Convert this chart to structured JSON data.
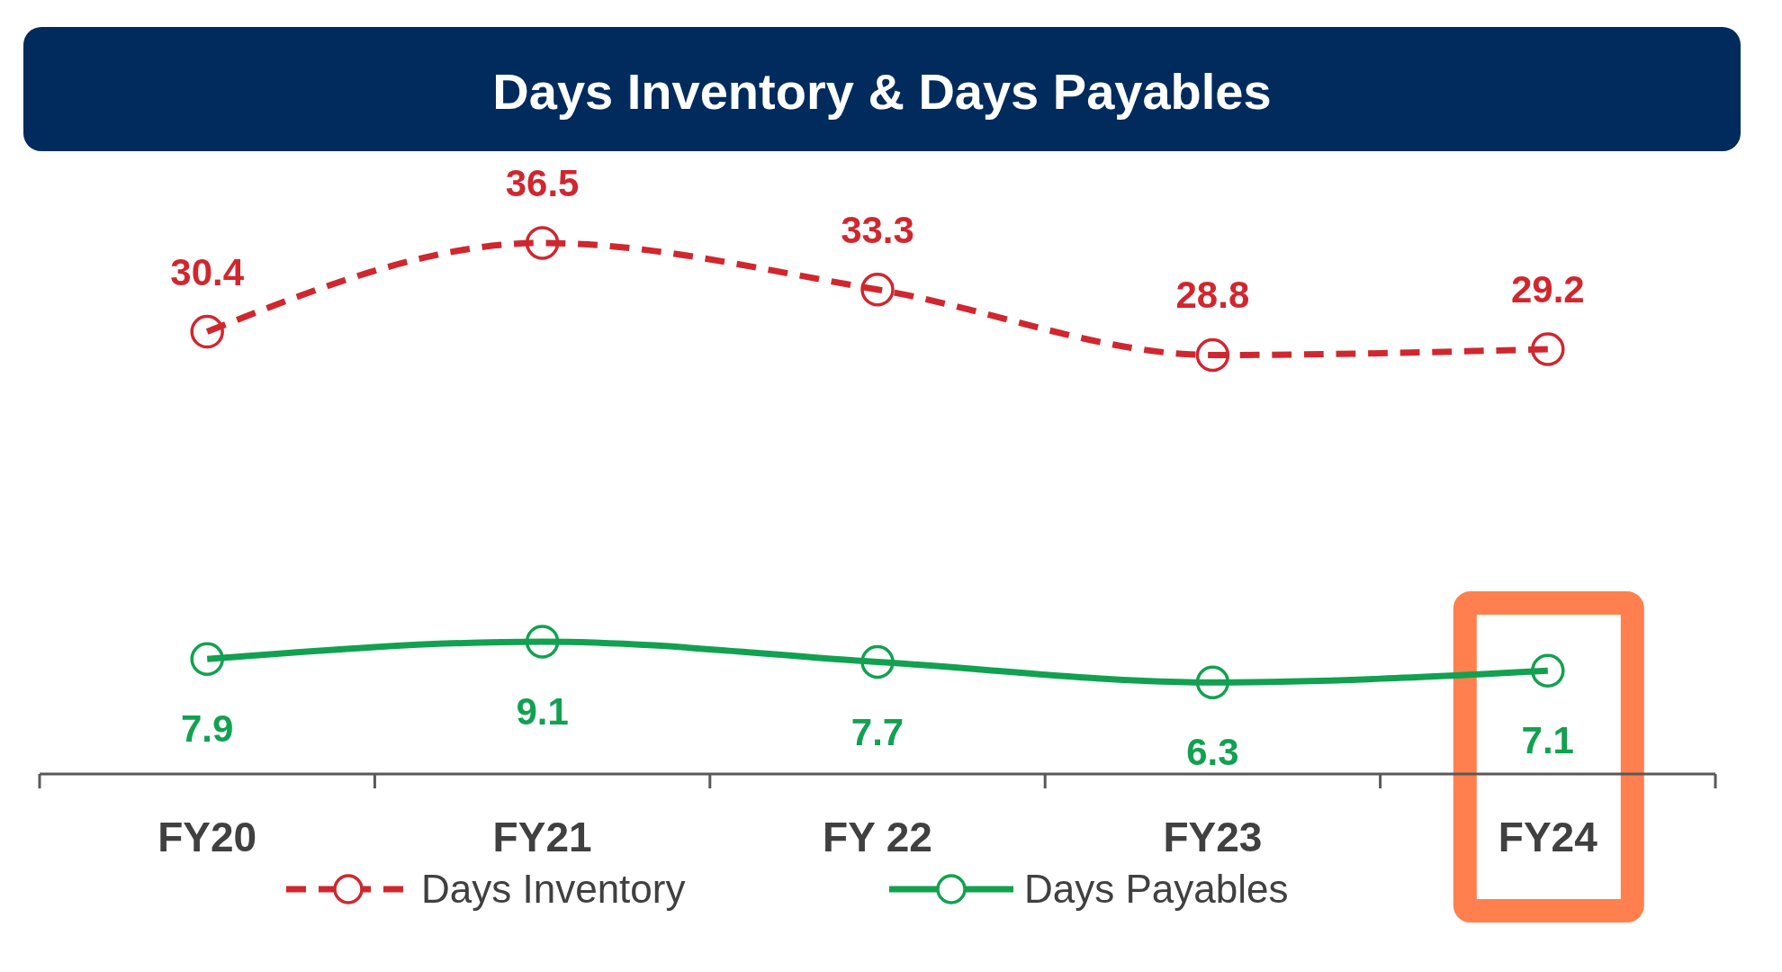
{
  "chart_data": {
    "type": "line",
    "title": "Days Inventory & Days Payables",
    "categories": [
      "FY20",
      "FY21",
      "FY 22",
      "FY23",
      "FY24"
    ],
    "series": [
      {
        "name": "Days Inventory",
        "color": "#d0272f",
        "values": [
          30.4,
          36.5,
          33.3,
          28.8,
          29.2
        ],
        "line_style": "dashed"
      },
      {
        "name": "Days Payables",
        "color": "#12a150",
        "values": [
          7.9,
          9.1,
          7.7,
          6.3,
          7.1
        ],
        "line_style": "solid"
      }
    ],
    "marker": "circle",
    "data_labels": true,
    "legend": "bottom",
    "tick_labels": "x"
  }
}
